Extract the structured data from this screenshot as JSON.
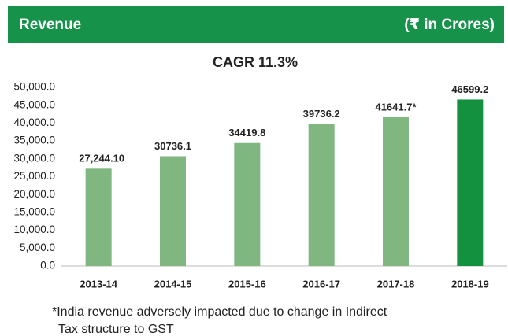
{
  "chart_data": {
    "type": "bar",
    "header": {
      "title": "Revenue",
      "unit": "(₹ in Crores)"
    },
    "title": "CAGR 11.3%",
    "categories": [
      "2013-14",
      "2014-15",
      "2015-16",
      "2016-17",
      "2017-18",
      "2018-19"
    ],
    "values": [
      27244.1,
      30736.1,
      34419.8,
      39736.2,
      41641.7,
      46599.2
    ],
    "value_labels": [
      "27,244.10",
      "30736.1",
      "34419.8",
      "39736.2",
      "41641.7*",
      "46599.2"
    ],
    "colors": [
      "#80b67f",
      "#80b67f",
      "#80b67f",
      "#80b67f",
      "#80b67f",
      "#13913f"
    ],
    "ylim": [
      0,
      50000
    ],
    "yticks": [
      {
        "value": 0,
        "label": "0.0"
      },
      {
        "value": 5000,
        "label": "5,000.0"
      },
      {
        "value": 10000,
        "label": "10,000.0"
      },
      {
        "value": 15000,
        "label": "15,000.0"
      },
      {
        "value": 20000,
        "label": "20,000.0"
      },
      {
        "value": 25000,
        "label": "25,000.0"
      },
      {
        "value": 30000,
        "label": "30,000.0"
      },
      {
        "value": 35000,
        "label": "35,000.0"
      },
      {
        "value": 40000,
        "label": "40,000.0"
      },
      {
        "value": 45000,
        "label": "45,000.0"
      },
      {
        "value": 50000,
        "label": "50,000.0"
      }
    ],
    "grid": false,
    "footnote": [
      "*India revenue adversely impacted due to change in Indirect",
      "Tax structure to GST"
    ]
  }
}
